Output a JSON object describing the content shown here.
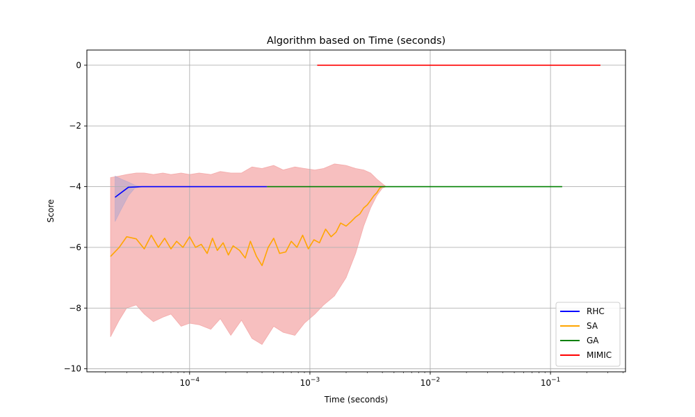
{
  "chart_data": {
    "type": "line",
    "title": "Algorithm based on Time (seconds)",
    "xlabel": "Time (seconds)",
    "ylabel": "Score",
    "xscale": "log",
    "xlim": [
      1.4e-05,
      0.42
    ],
    "ylim": [
      -10.1,
      0.5
    ],
    "grid": true,
    "legend_loc": "lower right",
    "x_ticks": [
      {
        "value": 0.0001,
        "base": "10",
        "exp": "−4"
      },
      {
        "value": 0.001,
        "base": "10",
        "exp": "−3"
      },
      {
        "value": 0.01,
        "base": "10",
        "exp": "−2"
      },
      {
        "value": 0.1,
        "base": "10",
        "exp": "−1"
      }
    ],
    "y_ticks": [
      {
        "value": 0,
        "label": "0"
      },
      {
        "value": -2,
        "label": "−2"
      },
      {
        "value": -4,
        "label": "−4"
      },
      {
        "value": -6,
        "label": "−6"
      },
      {
        "value": -8,
        "label": "−8"
      },
      {
        "value": -10,
        "label": "−10"
      }
    ],
    "series": [
      {
        "name": "RHC",
        "color": "#0000ff",
        "x": [
          2.4e-05,
          3.1e-05,
          4e-05,
          6e-05,
          0.0001,
          0.0002,
          0.00044
        ],
        "y": [
          -4.35,
          -4.02,
          -4.0,
          -4.0,
          -4.0,
          -4.0,
          -4.0
        ]
      },
      {
        "name": "SA",
        "color": "#ffa500",
        "x": [
          2.2e-05,
          2.6e-05,
          3e-05,
          3.6e-05,
          4.2e-05,
          4.8e-05,
          5.5e-05,
          6.2e-05,
          7e-05,
          7.8e-05,
          8.8e-05,
          0.0001,
          0.000112,
          0.000125,
          0.00014,
          0.000155,
          0.00017,
          0.00019,
          0.00021,
          0.00023,
          0.00026,
          0.00029,
          0.00032,
          0.00036,
          0.0004,
          0.00045,
          0.0005,
          0.00056,
          0.00063,
          0.0007,
          0.00078,
          0.00087,
          0.00097,
          0.00108,
          0.0012,
          0.00135,
          0.0015,
          0.00165,
          0.0018,
          0.002,
          0.0022,
          0.0024,
          0.0026,
          0.0028,
          0.003,
          0.0032,
          0.0034,
          0.0036,
          0.0038,
          0.004,
          0.0042
        ],
        "y": [
          -6.3,
          -6.0,
          -5.65,
          -5.72,
          -6.05,
          -5.6,
          -6.0,
          -5.7,
          -6.05,
          -5.8,
          -6.0,
          -5.65,
          -6.0,
          -5.9,
          -6.2,
          -5.7,
          -6.1,
          -5.85,
          -6.25,
          -5.95,
          -6.1,
          -6.35,
          -5.8,
          -6.3,
          -6.6,
          -6.0,
          -5.7,
          -6.2,
          -6.15,
          -5.8,
          -6.0,
          -5.6,
          -6.05,
          -5.75,
          -5.85,
          -5.4,
          -5.65,
          -5.5,
          -5.2,
          -5.3,
          -5.15,
          -5.0,
          -4.9,
          -4.7,
          -4.6,
          -4.45,
          -4.3,
          -4.2,
          -4.05,
          -4.0,
          -4.0
        ]
      },
      {
        "name": "GA",
        "color": "#008000",
        "x": [
          0.00044,
          0.001,
          0.005,
          0.02,
          0.06,
          0.125
        ],
        "y": [
          -4.0,
          -4.0,
          -4.0,
          -4.0,
          -4.0,
          -4.0
        ]
      },
      {
        "name": "MIMIC",
        "color": "#ff0000",
        "x": [
          0.00115,
          0.01,
          0.1,
          0.26
        ],
        "y": [
          0.0,
          0.0,
          0.0,
          0.0
        ]
      }
    ],
    "bands": [
      {
        "color": "#f08080",
        "opacity": 0.5,
        "x": [
          2.2e-05,
          2.6e-05,
          3e-05,
          3.6e-05,
          4.2e-05,
          5e-05,
          6e-05,
          7e-05,
          8.5e-05,
          0.0001,
          0.00012,
          0.00015,
          0.00018,
          0.00022,
          0.00027,
          0.00033,
          0.0004,
          0.0005,
          0.0006,
          0.00075,
          0.0009,
          0.0011,
          0.0013,
          0.0016,
          0.002,
          0.0024,
          0.0028,
          0.0032,
          0.0036,
          0.004,
          0.0043
        ],
        "upper": [
          -3.7,
          -3.65,
          -3.6,
          -3.55,
          -3.55,
          -3.6,
          -3.55,
          -3.6,
          -3.55,
          -3.6,
          -3.55,
          -3.6,
          -3.5,
          -3.55,
          -3.55,
          -3.35,
          -3.4,
          -3.3,
          -3.45,
          -3.35,
          -3.4,
          -3.45,
          -3.4,
          -3.25,
          -3.3,
          -3.4,
          -3.45,
          -3.55,
          -3.75,
          -3.9,
          -4.0
        ],
        "lower": [
          -8.95,
          -8.4,
          -8.0,
          -7.9,
          -8.2,
          -8.45,
          -8.3,
          -8.2,
          -8.6,
          -8.5,
          -8.55,
          -8.7,
          -8.35,
          -8.9,
          -8.4,
          -9.0,
          -9.2,
          -8.6,
          -8.8,
          -8.9,
          -8.5,
          -8.2,
          -7.9,
          -7.6,
          -7.0,
          -6.2,
          -5.3,
          -4.7,
          -4.3,
          -4.05,
          -4.0
        ]
      },
      {
        "color": "#a0a0d0",
        "opacity": 0.45,
        "x": [
          2.4e-05,
          2.7e-05,
          3.1e-05,
          3.5e-05,
          4e-05
        ],
        "upper": [
          -3.65,
          -3.75,
          -3.85,
          -3.95,
          -4.0
        ],
        "lower": [
          -5.15,
          -4.75,
          -4.3,
          -4.05,
          -4.0
        ]
      }
    ]
  }
}
